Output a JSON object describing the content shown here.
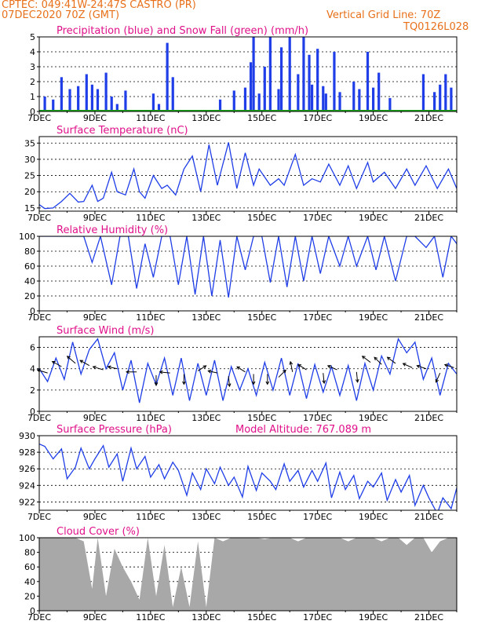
{
  "header": {
    "line1": "CPTEC:   049:41W-24:47S   CASTRO (PR)",
    "line2": "07DEC2020 70Z (GMT)",
    "grid_note": "Vertical Grid Line: 70Z",
    "code": "TQ0126L028"
  },
  "colors": {
    "header": "#e8701a",
    "title": "#e0108a",
    "line": "#1f3ee8",
    "bar": "#1f3ee8",
    "snow": "#1aa81a",
    "cloud": "#a8a8a8",
    "axis": "#000000"
  },
  "chart_data": [
    {
      "type": "bar",
      "title": "Precipitation (blue) and Snow Fall (green) (mm/h)",
      "ylim": [
        0,
        5
      ],
      "yticks": [
        0,
        1,
        2,
        3,
        4,
        5
      ],
      "xlim_days": [
        7,
        22
      ],
      "x_tick_labels": [
        "7DEC",
        "9DEC",
        "11DEC",
        "13DEC",
        "15DEC",
        "17DEC",
        "19DEC",
        "21DEC"
      ],
      "x_tick_days": [
        7,
        9,
        11,
        13,
        15,
        17,
        19,
        21
      ],
      "series": [
        {
          "name": "Precipitation",
          "x": [
            7.2,
            7.5,
            7.8,
            8.1,
            8.4,
            8.7,
            8.9,
            9.1,
            9.4,
            9.6,
            9.8,
            10.1,
            11.1,
            11.3,
            11.6,
            11.8,
            13.5,
            14.0,
            14.4,
            14.6,
            14.7,
            14.9,
            15.1,
            15.3,
            15.6,
            15.7,
            16.0,
            16.3,
            16.5,
            16.7,
            16.8,
            17.0,
            17.2,
            17.3,
            17.6,
            17.8,
            18.3,
            18.5,
            18.8,
            19.0,
            19.2,
            19.6,
            20.8,
            21.2,
            21.4,
            21.6,
            21.8
          ],
          "values": [
            1.0,
            0.8,
            2.3,
            1.5,
            1.7,
            2.5,
            1.8,
            1.5,
            2.6,
            1.0,
            0.5,
            1.4,
            1.2,
            0.5,
            4.6,
            2.3,
            0.8,
            1.4,
            1.6,
            3.3,
            5.0,
            1.2,
            3.0,
            5.0,
            1.5,
            4.3,
            5.0,
            2.5,
            5.0,
            3.8,
            1.8,
            4.2,
            1.7,
            1.2,
            4.0,
            1.3,
            2.0,
            1.5,
            4.0,
            1.6,
            2.6,
            0.9,
            2.5,
            1.3,
            1.8,
            2.5,
            1.6
          ]
        },
        {
          "name": "Snow Fall",
          "x": [
            7.0,
            22.0
          ],
          "values": [
            0,
            0
          ]
        }
      ]
    },
    {
      "type": "line",
      "title": "Surface Temperature (nC)",
      "ylim": [
        14,
        37
      ],
      "yticks": [
        15,
        20,
        25,
        30,
        35
      ],
      "xlim_days": [
        7,
        22
      ],
      "x_tick_labels": [
        "7DEC",
        "9DEC",
        "11DEC",
        "13DEC",
        "15DEC",
        "17DEC",
        "19DEC",
        "21DEC"
      ],
      "x_tick_days": [
        7,
        9,
        11,
        13,
        15,
        17,
        19,
        21
      ],
      "series": [
        {
          "name": "Surface Temperature",
          "x": [
            7.0,
            7.2,
            7.5,
            7.8,
            8.1,
            8.4,
            8.6,
            8.9,
            9.1,
            9.3,
            9.6,
            9.8,
            10.1,
            10.4,
            10.6,
            10.8,
            11.1,
            11.4,
            11.6,
            11.9,
            12.2,
            12.5,
            12.8,
            13.1,
            13.4,
            13.8,
            14.1,
            14.4,
            14.7,
            14.9,
            15.3,
            15.6,
            15.8,
            16.2,
            16.5,
            16.8,
            17.1,
            17.4,
            17.8,
            18.1,
            18.4,
            18.8,
            19.0,
            19.4,
            19.8,
            20.2,
            20.5,
            20.9,
            21.3,
            21.7,
            22.0
          ],
          "values": [
            16,
            14.8,
            15,
            17,
            19.5,
            16.8,
            17,
            22,
            17,
            18,
            26,
            20,
            19,
            27,
            20,
            18,
            25,
            21,
            22,
            19,
            27,
            31,
            20,
            34.5,
            22,
            35.2,
            21,
            32,
            22,
            27,
            22,
            24,
            22,
            31.5,
            22,
            24,
            23,
            28.5,
            22,
            28,
            21,
            29,
            23,
            26,
            21,
            27,
            22,
            28,
            21,
            27,
            21
          ]
        }
      ]
    },
    {
      "type": "line",
      "title": "Relative Humidity (%)",
      "ylim": [
        0,
        100
      ],
      "yticks": [
        0,
        20,
        40,
        60,
        80,
        100
      ],
      "xlim_days": [
        7,
        22
      ],
      "x_tick_labels": [
        "7DEC",
        "9DEC",
        "11DEC",
        "13DEC",
        "15DEC",
        "17DEC",
        "19DEC",
        "21DEC"
      ],
      "x_tick_days": [
        7,
        9,
        11,
        13,
        15,
        17,
        19,
        21
      ],
      "series": [
        {
          "name": "Relative Humidity",
          "x": [
            7.0,
            7.5,
            8.0,
            8.6,
            8.9,
            9.2,
            9.6,
            9.9,
            10.2,
            10.5,
            10.8,
            11.1,
            11.4,
            11.7,
            12.0,
            12.3,
            12.6,
            12.9,
            13.2,
            13.5,
            13.8,
            14.1,
            14.4,
            14.7,
            15.0,
            15.3,
            15.6,
            15.9,
            16.2,
            16.5,
            16.8,
            17.1,
            17.4,
            17.8,
            18.1,
            18.4,
            18.8,
            19.1,
            19.4,
            19.8,
            20.2,
            20.5,
            20.9,
            21.2,
            21.5,
            21.8,
            22.0
          ],
          "values": [
            100,
            100,
            100,
            100,
            65,
            100,
            35,
            100,
            100,
            30,
            90,
            45,
            100,
            100,
            35,
            100,
            22,
            100,
            20,
            95,
            18,
            100,
            55,
            100,
            100,
            38,
            100,
            32,
            100,
            40,
            100,
            50,
            100,
            60,
            100,
            60,
            100,
            55,
            100,
            40,
            100,
            100,
            85,
            100,
            45,
            100,
            90
          ]
        }
      ]
    },
    {
      "type": "line",
      "title": "Surface Wind (m/s)",
      "ylim": [
        0,
        7
      ],
      "yticks": [
        0,
        2,
        4,
        6
      ],
      "xlim_days": [
        7,
        22
      ],
      "x_tick_labels": [
        "7DEC",
        "9DEC",
        "11DEC",
        "13DEC",
        "15DEC",
        "17DEC",
        "19DEC",
        "21DEC"
      ],
      "x_tick_days": [
        7,
        9,
        11,
        13,
        15,
        17,
        19,
        21
      ],
      "series": [
        {
          "name": "Surface Wind",
          "x": [
            7.0,
            7.3,
            7.6,
            7.9,
            8.2,
            8.5,
            8.8,
            9.1,
            9.4,
            9.7,
            10.0,
            10.3,
            10.6,
            10.9,
            11.2,
            11.5,
            11.8,
            12.1,
            12.4,
            12.7,
            13.0,
            13.3,
            13.6,
            13.9,
            14.2,
            14.5,
            14.8,
            15.1,
            15.4,
            15.7,
            16.0,
            16.3,
            16.6,
            16.9,
            17.2,
            17.5,
            17.8,
            18.1,
            18.4,
            18.7,
            19.0,
            19.3,
            19.6,
            19.9,
            20.2,
            20.5,
            20.8,
            21.1,
            21.4,
            21.7,
            22.0
          ],
          "values": [
            4,
            2.8,
            5,
            3,
            6.5,
            3.5,
            5.8,
            6.8,
            4,
            5.5,
            2,
            4.8,
            0.8,
            4.5,
            2.5,
            5,
            1.5,
            5,
            1,
            4.5,
            1.5,
            4.8,
            1,
            4.2,
            2,
            4,
            1.5,
            4.6,
            2,
            5,
            1.5,
            4.5,
            1.2,
            4.4,
            1.8,
            4.2,
            1.5,
            4.3,
            1,
            4.5,
            2,
            5.2,
            3.5,
            6.8,
            5.5,
            6.5,
            3,
            5,
            1.5,
            4.5,
            3.5
          ]
        }
      ],
      "wind_arrows": [
        {
          "day": 7.3,
          "speed": 3.6,
          "u": -1.0,
          "v": 0.3
        },
        {
          "day": 7.8,
          "speed": 4.2,
          "u": -0.9,
          "v": 0.5
        },
        {
          "day": 8.3,
          "speed": 4.5,
          "u": -0.8,
          "v": 0.7
        },
        {
          "day": 8.8,
          "speed": 4.3,
          "u": -0.9,
          "v": 0.5
        },
        {
          "day": 9.3,
          "speed": 3.9,
          "u": -1.0,
          "v": 0.3
        },
        {
          "day": 9.8,
          "speed": 4.0,
          "u": -0.9,
          "v": 0.2
        },
        {
          "day": 10.5,
          "speed": 3.7,
          "u": -1.0,
          "v": 0.0
        },
        {
          "day": 11.2,
          "speed": 3.4,
          "u": 0.0,
          "v": -1.0
        },
        {
          "day": 11.7,
          "speed": 3.6,
          "u": -1.0,
          "v": 0.1
        },
        {
          "day": 12.2,
          "speed": 3.5,
          "u": 0.0,
          "v": -1.0
        },
        {
          "day": 12.7,
          "speed": 3.8,
          "u": 0.8,
          "v": 0.5
        },
        {
          "day": 13.4,
          "speed": 3.6,
          "u": -0.9,
          "v": 0.2
        },
        {
          "day": 13.8,
          "speed": 3.3,
          "u": 0.1,
          "v": -1.0
        },
        {
          "day": 14.4,
          "speed": 3.7,
          "u": -0.8,
          "v": 0.5
        },
        {
          "day": 14.7,
          "speed": 3.5,
          "u": 0.0,
          "v": -1.0
        },
        {
          "day": 15.2,
          "speed": 3.5,
          "u": 0.0,
          "v": -1.0
        },
        {
          "day": 15.6,
          "speed": 3.2,
          "u": 0.7,
          "v": 0.7
        },
        {
          "day": 16.1,
          "speed": 3.7,
          "u": -0.2,
          "v": 1.0
        },
        {
          "day": 16.6,
          "speed": 3.9,
          "u": -0.8,
          "v": 0.5
        },
        {
          "day": 17.2,
          "speed": 3.6,
          "u": 0.1,
          "v": -1.0
        },
        {
          "day": 17.7,
          "speed": 3.9,
          "u": -0.9,
          "v": 0.4
        },
        {
          "day": 18.4,
          "speed": 3.7,
          "u": 0.1,
          "v": -1.0
        },
        {
          "day": 18.9,
          "speed": 4.6,
          "u": -0.8,
          "v": 0.6
        },
        {
          "day": 19.3,
          "speed": 4.4,
          "u": -0.7,
          "v": 0.7
        },
        {
          "day": 19.8,
          "speed": 4.5,
          "u": -0.8,
          "v": 0.6
        },
        {
          "day": 20.4,
          "speed": 4.1,
          "u": -0.9,
          "v": 0.4
        },
        {
          "day": 20.9,
          "speed": 4.0,
          "u": -0.9,
          "v": 0.3
        },
        {
          "day": 21.4,
          "speed": 3.6,
          "u": -0.4,
          "v": -0.9
        },
        {
          "day": 21.9,
          "speed": 4.1,
          "u": -0.9,
          "v": 0.3
        }
      ]
    },
    {
      "type": "line",
      "title": "Surface Pressure (hPa)",
      "subtitle": "Model Altitude: 767.089  m",
      "ylim": [
        921,
        930
      ],
      "yticks": [
        922,
        924,
        926,
        928,
        930
      ],
      "xlim_days": [
        7,
        22
      ],
      "x_tick_labels": [
        "7DEC",
        "9DEC",
        "11DEC",
        "13DEC",
        "15DEC",
        "17DEC",
        "19DEC",
        "21DEC"
      ],
      "x_tick_days": [
        7,
        9,
        11,
        13,
        15,
        17,
        19,
        21
      ],
      "series": [
        {
          "name": "Surface Pressure",
          "x": [
            7.0,
            7.2,
            7.5,
            7.8,
            8.0,
            8.3,
            8.5,
            8.8,
            9.0,
            9.3,
            9.5,
            9.8,
            10.0,
            10.3,
            10.5,
            10.8,
            11.0,
            11.3,
            11.5,
            11.8,
            12.0,
            12.3,
            12.5,
            12.8,
            13.0,
            13.3,
            13.5,
            13.8,
            14.0,
            14.3,
            14.5,
            14.8,
            15.0,
            15.3,
            15.5,
            15.8,
            16.0,
            16.3,
            16.5,
            16.8,
            17.0,
            17.3,
            17.5,
            17.8,
            18.0,
            18.3,
            18.5,
            18.8,
            19.0,
            19.3,
            19.5,
            19.8,
            20.0,
            20.3,
            20.5,
            20.8,
            21.0,
            21.3,
            21.5,
            21.8,
            22.0
          ],
          "values": [
            929,
            928.7,
            927.2,
            928.4,
            924.8,
            926.2,
            928.5,
            926,
            927.2,
            928.8,
            926.2,
            927.8,
            924.5,
            928.5,
            926,
            927.5,
            925,
            926.5,
            924.8,
            926.8,
            925.8,
            922.8,
            925.5,
            923.5,
            926,
            924.2,
            926.2,
            924,
            925,
            922.6,
            926.3,
            923.4,
            925.5,
            924.5,
            923.5,
            926.6,
            924.5,
            925.8,
            923.8,
            925.8,
            924.5,
            926.7,
            922.5,
            925.6,
            923.5,
            925.2,
            922.4,
            924.5,
            923.8,
            925.5,
            922.2,
            924.7,
            923.2,
            925.2,
            921.6,
            924,
            922.5,
            920.6,
            922.5,
            921.2,
            923.7
          ]
        }
      ]
    },
    {
      "type": "area",
      "title": "Cloud Cover (%)",
      "ylim": [
        0,
        100
      ],
      "yticks": [
        0,
        20,
        40,
        60,
        80,
        100
      ],
      "xlim_days": [
        7,
        22
      ],
      "x_tick_labels": [
        "7DEC",
        "9DEC",
        "11DEC",
        "13DEC",
        "15DEC",
        "17DEC",
        "19DEC",
        "21DEC"
      ],
      "x_tick_days": [
        7,
        9,
        11,
        13,
        15,
        17,
        19,
        21
      ],
      "series": [
        {
          "name": "Cloud Cover",
          "x": [
            7.0,
            7.5,
            8.0,
            8.3,
            8.6,
            8.9,
            9.1,
            9.4,
            9.7,
            10.0,
            10.3,
            10.6,
            10.9,
            11.2,
            11.5,
            11.8,
            12.1,
            12.4,
            12.7,
            13.0,
            13.3,
            13.6,
            13.9,
            14.2,
            14.5,
            14.8,
            15.1,
            15.4,
            15.7,
            16.0,
            16.3,
            16.6,
            16.9,
            17.2,
            17.5,
            17.8,
            18.1,
            18.4,
            18.7,
            19.0,
            19.3,
            19.6,
            19.9,
            20.2,
            20.5,
            20.8,
            21.1,
            21.4,
            21.7,
            22.0
          ],
          "values": [
            100,
            100,
            100,
            100,
            95,
            30,
            100,
            20,
            85,
            60,
            40,
            15,
            100,
            20,
            90,
            5,
            60,
            5,
            95,
            5,
            100,
            95,
            100,
            100,
            100,
            100,
            98,
            100,
            100,
            100,
            95,
            100,
            100,
            100,
            100,
            100,
            95,
            100,
            100,
            100,
            95,
            100,
            100,
            90,
            100,
            100,
            80,
            95,
            100,
            100
          ]
        }
      ]
    }
  ]
}
